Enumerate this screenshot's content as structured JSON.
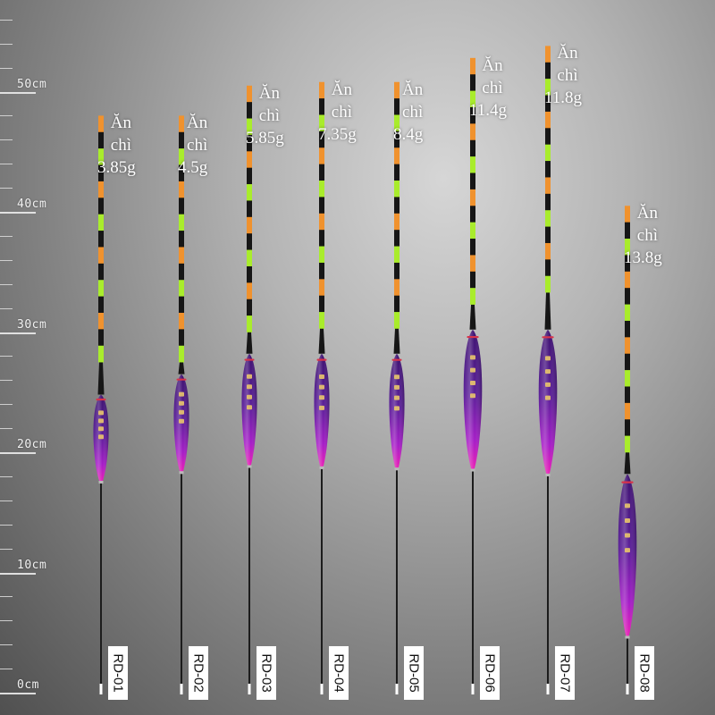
{
  "ruler": {
    "labels": [
      "50cm",
      "40cm",
      "30cm",
      "20cm",
      "10cm",
      "0cm"
    ]
  },
  "weight_caption": {
    "line1": "Ăn",
    "line2": "chì"
  },
  "colors": {
    "tip_orange": "#f0922e",
    "tip_green": "#a9ec2c",
    "stem_black": "#161616",
    "body_purple": "#5a1f98",
    "body_pink": "#ee1fb4",
    "ring_red": "#d8334a"
  },
  "floats": [
    {
      "model": "RD-01",
      "weight": "3.85g",
      "total_length_cm": 48,
      "body_top_cm": 24.8,
      "body_bottom_cm": 17.4
    },
    {
      "model": "RD-02",
      "weight": "4.5g",
      "total_length_cm": 48,
      "body_top_cm": 26.5,
      "body_bottom_cm": 18.2
    },
    {
      "model": "RD-03",
      "weight": "5.85g",
      "total_length_cm": 50.5,
      "body_top_cm": 28.2,
      "body_bottom_cm": 18.7
    },
    {
      "model": "RD-04",
      "weight": "7.35g",
      "total_length_cm": 50.8,
      "body_top_cm": 28.2,
      "body_bottom_cm": 18.6
    },
    {
      "model": "RD-05",
      "weight": "8.4g",
      "total_length_cm": 50.8,
      "body_top_cm": 28.2,
      "body_bottom_cm": 18.5
    },
    {
      "model": "RD-06",
      "weight": "11.4g",
      "total_length_cm": 52.8,
      "body_top_cm": 30.2,
      "body_bottom_cm": 18.4
    },
    {
      "model": "RD-07",
      "weight": "11.8g",
      "total_length_cm": 53.8,
      "body_top_cm": 30.2,
      "body_bottom_cm": 18.0
    },
    {
      "model": "RD-08",
      "weight": "13.8g",
      "total_length_cm": 40.5,
      "body_top_cm": 18.2,
      "body_bottom_cm": 4.5
    }
  ]
}
